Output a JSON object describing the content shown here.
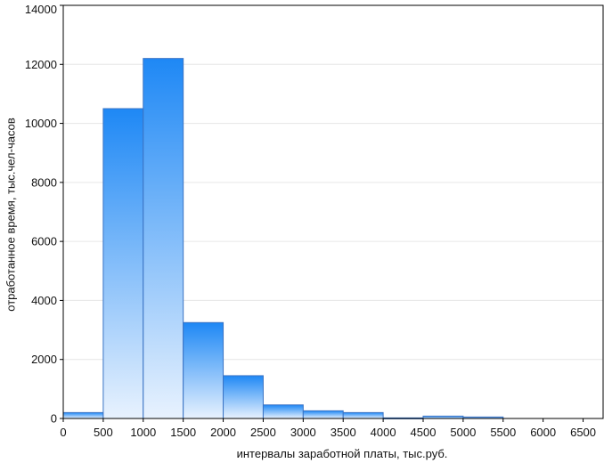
{
  "chart_data": {
    "type": "bar",
    "title": "",
    "xlabel": "интервалы заработной платы, тыс.руб.",
    "ylabel": "отработанное время, тыс.чел-часов",
    "xlim": [
      0,
      6750
    ],
    "ylim": [
      0,
      14000
    ],
    "x_ticks": [
      "0",
      "500",
      "1000",
      "1500",
      "2000",
      "2500",
      "3000",
      "3500",
      "4000",
      "4500",
      "5000",
      "5500",
      "6000",
      "6500"
    ],
    "y_ticks": [
      "0",
      "2000",
      "4000",
      "6000",
      "8000",
      "10000",
      "12000",
      "14000"
    ],
    "grid": "horizontal",
    "bins": [
      {
        "start": 0,
        "end": 500,
        "value": 200
      },
      {
        "start": 500,
        "end": 1000,
        "value": 10500
      },
      {
        "start": 1000,
        "end": 1500,
        "value": 12200
      },
      {
        "start": 1500,
        "end": 2000,
        "value": 3250
      },
      {
        "start": 2000,
        "end": 2500,
        "value": 1450
      },
      {
        "start": 2500,
        "end": 3000,
        "value": 460
      },
      {
        "start": 3000,
        "end": 3500,
        "value": 260
      },
      {
        "start": 3500,
        "end": 4000,
        "value": 200
      },
      {
        "start": 4000,
        "end": 4500,
        "value": 20
      },
      {
        "start": 4500,
        "end": 5000,
        "value": 80
      },
      {
        "start": 5000,
        "end": 5500,
        "value": 50
      },
      {
        "start": 5500,
        "end": 6000,
        "value": 0
      },
      {
        "start": 6000,
        "end": 6500,
        "value": 0
      }
    ],
    "colors": {
      "bar_top": "#1e88f5",
      "bar_bottom": "#e8f2fe",
      "bar_edge": "#3a73c4",
      "axis": "#000000",
      "grid": "#e6e6e6"
    }
  }
}
